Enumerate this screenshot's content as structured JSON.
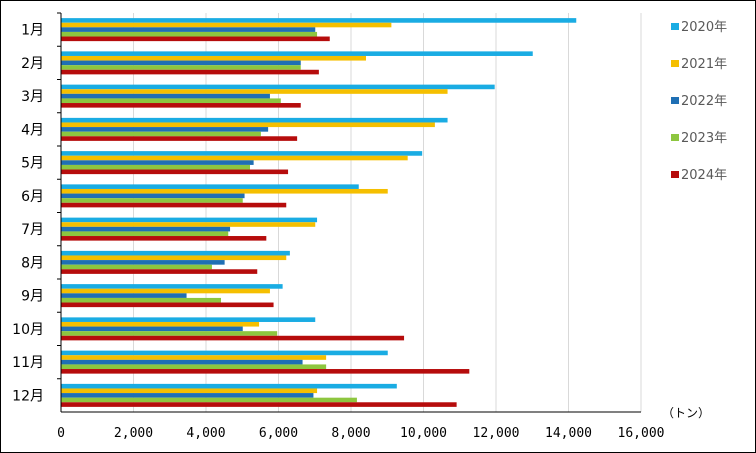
{
  "chart_data": {
    "type": "bar",
    "orientation": "horizontal",
    "categories": [
      "1月",
      "2月",
      "3月",
      "4月",
      "5月",
      "6月",
      "7月",
      "8月",
      "9月",
      "10月",
      "11月",
      "12月"
    ],
    "series": [
      {
        "name": "2020年",
        "color": "#1AACE3",
        "values": [
          14200,
          13000,
          11950,
          10650,
          9950,
          8200,
          7050,
          6300,
          6100,
          7000,
          9000,
          9250
        ]
      },
      {
        "name": "2021年",
        "color": "#F5BF00",
        "values": [
          9100,
          8400,
          10650,
          10300,
          9550,
          9000,
          7000,
          6200,
          5750,
          5450,
          7300,
          7050
        ]
      },
      {
        "name": "2022年",
        "color": "#1F6FB4",
        "values": [
          7000,
          6600,
          5750,
          5700,
          5300,
          5050,
          4650,
          4500,
          3450,
          5000,
          6650,
          6950
        ]
      },
      {
        "name": "2023年",
        "color": "#8DC63F",
        "values": [
          7050,
          6600,
          6050,
          5500,
          5200,
          5000,
          4600,
          4150,
          4400,
          5950,
          7300,
          8150
        ]
      },
      {
        "name": "2024年",
        "color": "#B60C0C",
        "values": [
          7400,
          7100,
          6600,
          6500,
          6250,
          6200,
          5650,
          5400,
          5850,
          9450,
          11250,
          10900
        ]
      }
    ],
    "xlim": [
      0,
      16000
    ],
    "xticks": [
      "0",
      "2,000",
      "4,000",
      "6,000",
      "8,000",
      "10,000",
      "12,000",
      "14,000",
      "16,000"
    ],
    "unit": "（トン）",
    "grid": true,
    "legend_position": "right"
  }
}
